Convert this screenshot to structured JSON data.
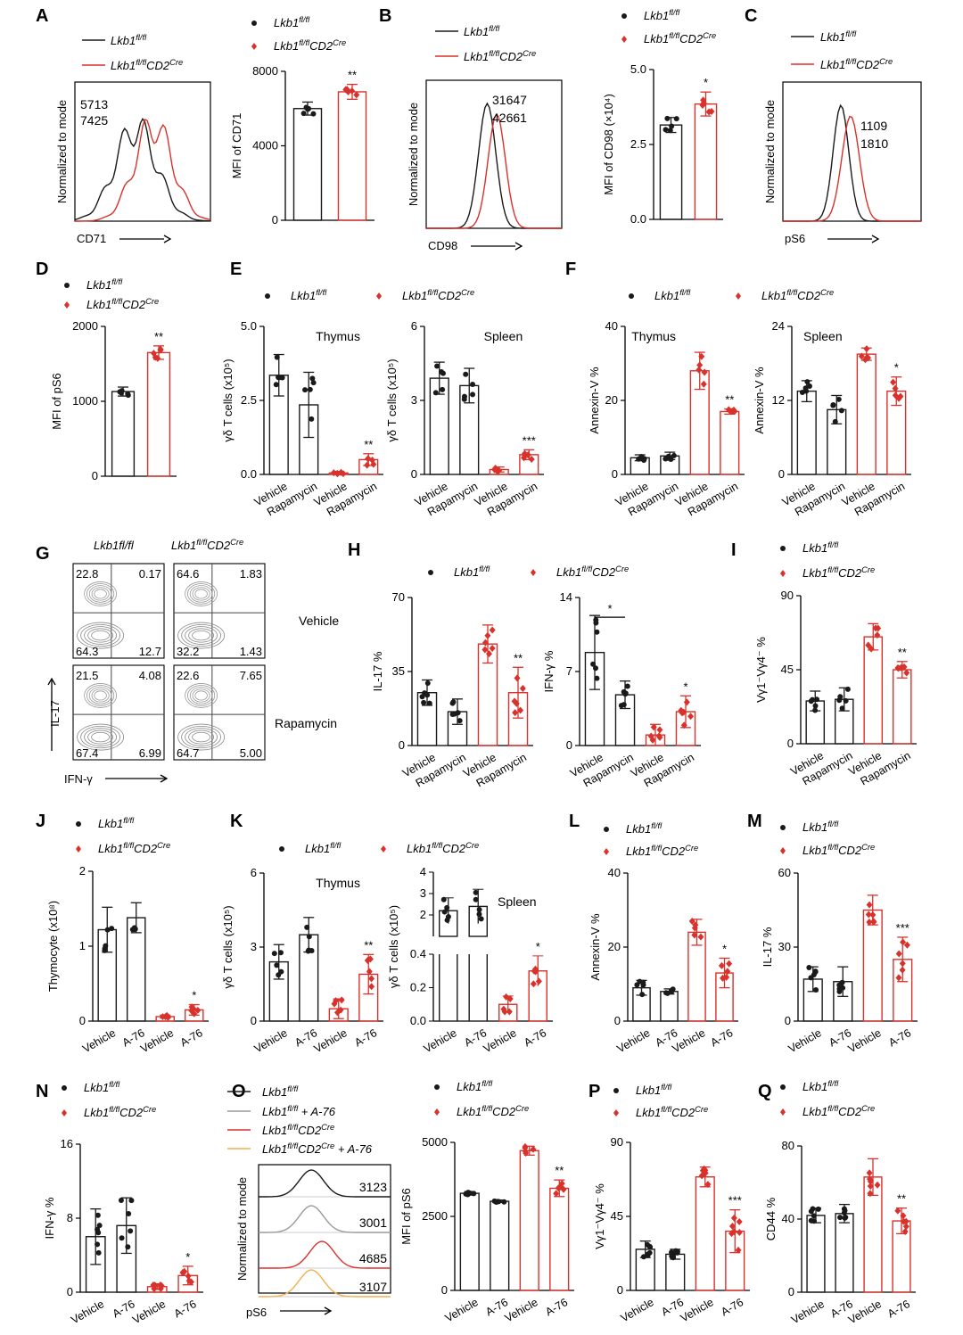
{
  "colors": {
    "control": "#1a1a1a",
    "ko": "#d9312b",
    "gray": "#9a9a9a",
    "orange": "#f0b050"
  },
  "legend": {
    "control": "Lkb1fl/fl",
    "ko": "Lkb1fl/flCD2Cre"
  },
  "chart_data": [
    {
      "id": "A-hist",
      "letter": "A",
      "type": "line",
      "xlabel": "CD71",
      "ylabel": "Normalized to mode",
      "legend": [
        "Lkb1fl/fl",
        "Lkb1fl/flCD2Cre"
      ],
      "series": [
        {
          "name": "Lkb1fl/fl",
          "mfi": "5713"
        },
        {
          "name": "Lkb1fl/flCD2Cre",
          "mfi": "7425"
        }
      ]
    },
    {
      "id": "A-bar",
      "type": "bar",
      "ylabel": "MFI of CD71",
      "ylim": [
        0,
        8000
      ],
      "yticks": [
        "0",
        "4000",
        "8000"
      ],
      "categories": [
        "Lkb1fl/fl",
        "Lkb1fl/flCD2Cre"
      ],
      "values": [
        6000,
        6900
      ],
      "err": [
        350,
        400
      ],
      "sig": [
        {
          "bar": 1,
          "text": "**"
        }
      ]
    },
    {
      "id": "B-hist",
      "letter": "B",
      "type": "line",
      "xlabel": "CD98",
      "ylabel": "Normalized to mode",
      "legend": [
        "Lkb1fl/fl",
        "Lkb1fl/flCD2Cre"
      ],
      "series": [
        {
          "name": "Lkb1fl/fl",
          "mfi": "31647"
        },
        {
          "name": "Lkb1fl/flCD2Cre",
          "mfi": "42661"
        }
      ]
    },
    {
      "id": "B-bar",
      "type": "bar",
      "ylabel": "MFI of CD98 (×10⁴)",
      "ylim": [
        0,
        5
      ],
      "yticks": [
        "0.0",
        "2.5",
        "5.0"
      ],
      "categories": [
        "Lkb1fl/fl",
        "Lkb1fl/flCD2Cre"
      ],
      "values": [
        3.15,
        3.85
      ],
      "err": [
        0.25,
        0.4
      ],
      "sig": [
        {
          "bar": 1,
          "text": "*"
        }
      ]
    },
    {
      "id": "C-hist",
      "letter": "C",
      "type": "line",
      "xlabel": "pS6",
      "ylabel": "Normalized to mode",
      "legend": [
        "Lkb1fl/fl",
        "Lkb1fl/flCD2Cre"
      ],
      "series": [
        {
          "name": "Lkb1fl/fl",
          "mfi": "1109"
        },
        {
          "name": "Lkb1fl/flCD2Cre",
          "mfi": "1810"
        }
      ]
    },
    {
      "id": "D",
      "letter": "D",
      "type": "bar",
      "ylabel": "MFI of pS6",
      "ylim": [
        0,
        2000
      ],
      "yticks": [
        "0",
        "1000",
        "2000"
      ],
      "categories": [
        "Lkb1fl/fl",
        "Lkb1fl/flCD2Cre"
      ],
      "values": [
        1130,
        1650
      ],
      "err": [
        60,
        90
      ],
      "sig": [
        {
          "bar": 1,
          "text": "**"
        }
      ]
    },
    {
      "id": "E-thymus",
      "letter": "E",
      "type": "bar",
      "title": "Thymus",
      "ylabel": "γδ T cells (x10⁵)",
      "ylim": [
        0,
        5
      ],
      "yticks": [
        "0.0",
        "2.5",
        "5.0"
      ],
      "categories": [
        "Vehicle",
        "Rapamycin",
        "Vehicle",
        "Rapamycin"
      ],
      "values": [
        3.35,
        2.35,
        0.05,
        0.5
      ],
      "err": [
        0.7,
        1.1,
        0.05,
        0.2
      ],
      "sig": [
        {
          "bar": 3,
          "text": "**"
        }
      ]
    },
    {
      "id": "E-spleen",
      "type": "bar",
      "title": "Spleen",
      "ylabel": "γδ T cells (x10⁵)",
      "ylim": [
        0,
        6
      ],
      "yticks": [
        "0",
        "3",
        "6"
      ],
      "categories": [
        "Vehicle",
        "Rapamycin",
        "Vehicle",
        "Rapamycin"
      ],
      "values": [
        3.9,
        3.6,
        0.2,
        0.8
      ],
      "err": [
        0.65,
        0.7,
        0.1,
        0.2
      ],
      "sig": [
        {
          "bar": 3,
          "text": "***"
        }
      ]
    },
    {
      "id": "F-thymus",
      "letter": "F",
      "type": "bar",
      "title": "Thymus",
      "ylabel": "Annexin-V %",
      "ylim": [
        0,
        40
      ],
      "yticks": [
        "0",
        "20",
        "40"
      ],
      "categories": [
        "Vehicle",
        "Rapamycin",
        "Vehicle",
        "Rapamycin"
      ],
      "values": [
        4.5,
        5,
        28,
        17
      ],
      "err": [
        0.8,
        1,
        5,
        0.7
      ],
      "sig": [
        {
          "bar": 3,
          "text": "**"
        }
      ]
    },
    {
      "id": "F-spleen",
      "type": "bar",
      "title": "Spleen",
      "ylabel": "Annexin-V %",
      "ylim": [
        0,
        24
      ],
      "yticks": [
        "0",
        "12",
        "24"
      ],
      "categories": [
        "Vehicle",
        "Rapamycin",
        "Vehicle",
        "Rapamycin"
      ],
      "values": [
        13.5,
        10.5,
        19.5,
        13.5
      ],
      "err": [
        1.7,
        2.3,
        1,
        2.3
      ],
      "sig": [
        {
          "bar": 3,
          "text": "*"
        }
      ]
    },
    {
      "id": "G",
      "letter": "G",
      "type": "scatter",
      "xlabel": "IFN-γ",
      "ylabel": "IL-17",
      "columns": [
        "Lkb1fl/fl",
        "Lkb1fl/flCD2Cre"
      ],
      "rows": [
        "Vehicle",
        "Rapamycin"
      ],
      "quadrants": [
        [
          [
            "22.8",
            "0.17",
            "64.3",
            "12.7"
          ],
          [
            "64.6",
            "1.83",
            "32.2",
            "1.43"
          ]
        ],
        [
          [
            "21.5",
            "4.08",
            "67.4",
            "6.99"
          ],
          [
            "22.6",
            "7.65",
            "64.7",
            "5.00"
          ]
        ]
      ]
    },
    {
      "id": "H-il17",
      "letter": "H",
      "type": "bar",
      "ylabel": "IL-17 %",
      "ylim": [
        0,
        70
      ],
      "yticks": [
        "0",
        "35",
        "70"
      ],
      "categories": [
        "Vehicle",
        "Rapamycin",
        "Vehicle",
        "Rapamycin"
      ],
      "values": [
        25,
        16,
        48,
        25
      ],
      "err": [
        6,
        6,
        9,
        12
      ],
      "sig": [
        {
          "bar": 3,
          "text": "**"
        }
      ]
    },
    {
      "id": "H-ifng",
      "type": "bar",
      "ylabel": "IFN-γ %",
      "ylim": [
        0,
        14
      ],
      "yticks": [
        "0",
        "7",
        "14"
      ],
      "categories": [
        "Vehicle",
        "Rapamycin",
        "Vehicle",
        "Rapamycin"
      ],
      "values": [
        8.8,
        4.8,
        1,
        3.2
      ],
      "err": [
        3.5,
        1.3,
        1,
        1.5
      ],
      "sig": [
        {
          "bar": 3,
          "text": "*"
        }
      ],
      "bracket": {
        "from": 0,
        "to": 1,
        "text": "*"
      }
    },
    {
      "id": "I",
      "letter": "I",
      "type": "bar",
      "ylabel": "Vγ1⁻Vγ4⁻ %",
      "ylim": [
        0,
        90
      ],
      "yticks": [
        "0",
        "45",
        "90"
      ],
      "categories": [
        "Vehicle",
        "Rapamycin",
        "Vehicle",
        "Rapamycin"
      ],
      "values": [
        26,
        27,
        65,
        45
      ],
      "err": [
        6,
        7,
        8,
        5
      ],
      "sig": [
        {
          "bar": 3,
          "text": "**"
        }
      ]
    },
    {
      "id": "J",
      "letter": "J",
      "type": "bar",
      "ylabel": "Thymocyte (x10⁸)",
      "ylim": [
        0,
        2
      ],
      "yticks": [
        "0",
        "1",
        "2"
      ],
      "categories": [
        "Vehicle",
        "A-76",
        "Vehicle",
        "A-76"
      ],
      "values": [
        1.22,
        1.38,
        0.06,
        0.15
      ],
      "err": [
        0.3,
        0.2,
        0.02,
        0.07
      ],
      "sig": [
        {
          "bar": 3,
          "text": "*"
        }
      ]
    },
    {
      "id": "K-thymus",
      "letter": "K",
      "type": "bar",
      "title": "Thymus",
      "ylabel": "γδ T cells (x10⁵)",
      "ylim": [
        0,
        6
      ],
      "yticks": [
        "0",
        "3",
        "6"
      ],
      "categories": [
        "Vehicle",
        "A-76",
        "Vehicle",
        "A-76"
      ],
      "values": [
        2.4,
        3.5,
        0.5,
        1.9
      ],
      "err": [
        0.7,
        0.7,
        0.4,
        0.8
      ],
      "sig": [
        {
          "bar": 3,
          "text": "**"
        }
      ]
    },
    {
      "id": "K-spleen",
      "type": "bar",
      "title": "Spleen",
      "ylabel": "γδ T cells (x10⁵)",
      "broken": true,
      "upper": {
        "ylim": [
          1,
          4
        ],
        "yticks": [
          "2",
          "3",
          "4"
        ]
      },
      "lower": {
        "ylim": [
          0,
          0.4
        ],
        "yticks": [
          "0.0",
          "0.2",
          "0.4"
        ]
      },
      "categories": [
        "Vehicle",
        "A-76",
        "Vehicle",
        "A-76"
      ],
      "values": [
        2.2,
        2.4,
        0.1,
        0.3
      ],
      "err": [
        0.6,
        0.8,
        0.05,
        0.09
      ],
      "sig": [
        {
          "bar": 3,
          "text": "*"
        }
      ]
    },
    {
      "id": "L",
      "letter": "L",
      "type": "bar",
      "ylabel": "Annexin-V %",
      "ylim": [
        0,
        40
      ],
      "yticks": [
        "0",
        "20",
        "40"
      ],
      "categories": [
        "Vehicle",
        "A-76",
        "Vehicle",
        "A-76"
      ],
      "values": [
        9,
        8,
        24,
        13
      ],
      "err": [
        2,
        0.7,
        3.5,
        4
      ],
      "sig": [
        {
          "bar": 3,
          "text": "*"
        }
      ]
    },
    {
      "id": "M",
      "letter": "M",
      "type": "bar",
      "ylabel": "IL-17 %",
      "ylim": [
        0,
        60
      ],
      "yticks": [
        "0",
        "30",
        "60"
      ],
      "categories": [
        "Vehicle",
        "A-76",
        "Vehicle",
        "A-76"
      ],
      "values": [
        17,
        16,
        45,
        25
      ],
      "err": [
        5,
        6,
        6,
        9
      ],
      "sig": [
        {
          "bar": 3,
          "text": "***"
        }
      ]
    },
    {
      "id": "N",
      "letter": "N",
      "type": "bar",
      "ylabel": "IFN-γ %",
      "ylim": [
        0,
        16
      ],
      "yticks": [
        "0",
        "8",
        "16"
      ],
      "categories": [
        "Vehicle",
        "A-76",
        "Vehicle",
        "A-76"
      ],
      "values": [
        6,
        7.2,
        0.6,
        1.8
      ],
      "err": [
        3,
        3,
        0.3,
        1
      ],
      "sig": [
        {
          "bar": 3,
          "text": "*"
        }
      ]
    },
    {
      "id": "O-hist",
      "letter": "O",
      "type": "line",
      "xlabel": "pS6",
      "ylabel": "Normalized to mode",
      "series": [
        {
          "name": "Lkb1fl/fl",
          "mfi": "3123"
        },
        {
          "name": "Lkb1fl/fl + A-76",
          "mfi": "3001"
        },
        {
          "name": "Lkb1fl/flCD2Cre",
          "mfi": "4685"
        },
        {
          "name": "Lkb1fl/flCD2Cre + A-76",
          "mfi": "3107"
        }
      ]
    },
    {
      "id": "O-bar",
      "type": "bar",
      "ylabel": "MFI of pS6",
      "ylim": [
        0,
        5000
      ],
      "yticks": [
        "0",
        "2500",
        "5000"
      ],
      "categories": [
        "Vehicle",
        "A-76",
        "Vehicle",
        "A-76"
      ],
      "values": [
        3280,
        3010,
        4720,
        3450
      ],
      "err": [
        60,
        40,
        150,
        280
      ],
      "sig": [
        {
          "bar": 3,
          "text": "**"
        }
      ]
    },
    {
      "id": "P",
      "letter": "P",
      "type": "bar",
      "ylabel": "Vγ1⁻Vγ4⁻ %",
      "ylim": [
        0,
        90
      ],
      "yticks": [
        "0",
        "45",
        "90"
      ],
      "categories": [
        "Vehicle",
        "A-76",
        "Vehicle",
        "A-76"
      ],
      "values": [
        25,
        22,
        69,
        36
      ],
      "err": [
        5,
        3,
        6,
        13
      ],
      "sig": [
        {
          "bar": 3,
          "text": "***"
        }
      ]
    },
    {
      "id": "Q",
      "letter": "Q",
      "type": "bar",
      "ylabel": "CD44 %",
      "ylim": [
        0,
        80
      ],
      "yticks": [
        "0",
        "40",
        "80"
      ],
      "categories": [
        "Vehicle",
        "A-76",
        "Vehicle",
        "A-76"
      ],
      "values": [
        42,
        43,
        63,
        39
      ],
      "err": [
        4,
        5,
        10,
        7
      ],
      "sig": [
        {
          "bar": 3,
          "text": "**"
        }
      ]
    }
  ]
}
